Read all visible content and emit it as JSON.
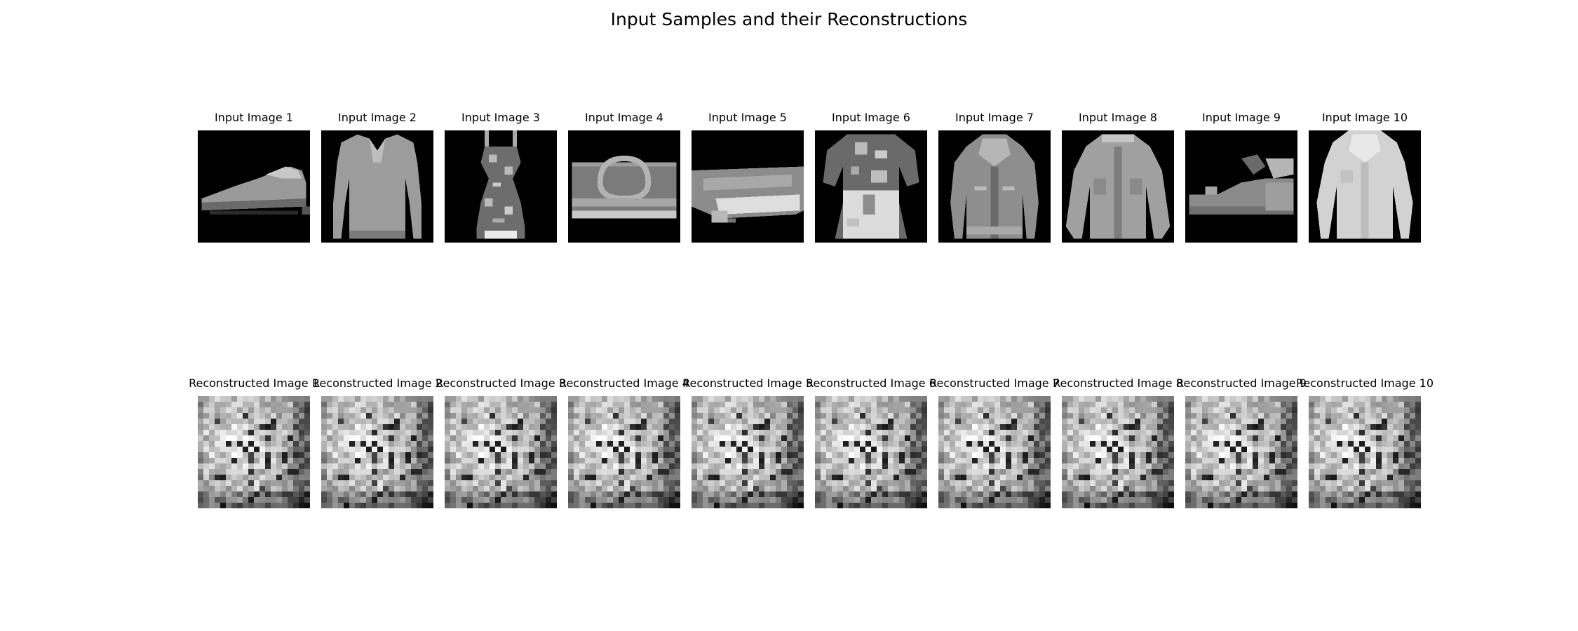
{
  "figure": {
    "title": "Input Samples and their Reconstructions"
  },
  "inputs": [
    {
      "title": "Input Image 1",
      "subject": "sneaker"
    },
    {
      "title": "Input Image 2",
      "subject": "pullover"
    },
    {
      "title": "Input Image 3",
      "subject": "dress"
    },
    {
      "title": "Input Image 4",
      "subject": "bag"
    },
    {
      "title": "Input Image 5",
      "subject": "bag"
    },
    {
      "title": "Input Image 6",
      "subject": "shirt"
    },
    {
      "title": "Input Image 7",
      "subject": "coat"
    },
    {
      "title": "Input Image 8",
      "subject": "coat"
    },
    {
      "title": "Input Image 9",
      "subject": "sandal"
    },
    {
      "title": "Input Image 10",
      "subject": "coat"
    }
  ],
  "reconstructions": [
    {
      "title": "Reconstructed Image 1"
    },
    {
      "title": "Reconstructed Image 2"
    },
    {
      "title": "Reconstructed Image 3"
    },
    {
      "title": "Reconstructed Image 4"
    },
    {
      "title": "Reconstructed Image 5"
    },
    {
      "title": "Reconstructed Image 6"
    },
    {
      "title": "Reconstructed Image 7"
    },
    {
      "title": "Reconstructed Image 8"
    },
    {
      "title": "Reconstructed Image 9"
    },
    {
      "title": "Reconstructed Image 10"
    }
  ],
  "colormap": "gray",
  "colors": {
    "background": "#ffffff",
    "image_background": "#000000"
  }
}
